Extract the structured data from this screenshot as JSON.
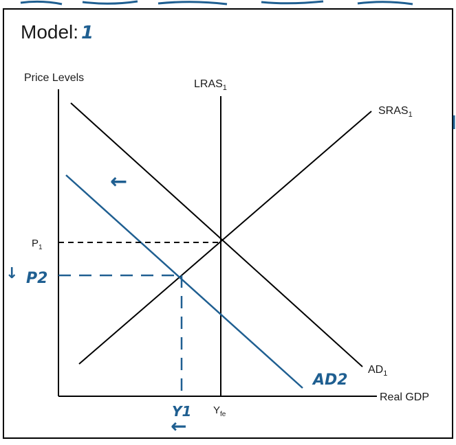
{
  "header": {
    "title": "Model:",
    "model_number": "1"
  },
  "colors": {
    "ink": "#111111",
    "annotation": "#1f5f91",
    "frame": "#000000"
  },
  "graph": {
    "y_axis_label": "Price Levels",
    "x_axis_label": "Real GDP",
    "curves": {
      "lras": "LRAS",
      "lras_sub": "1",
      "sras": "SRAS",
      "sras_sub": "1",
      "ad1": "AD",
      "ad1_sub": "1",
      "ad2": "AD2"
    },
    "ticks": {
      "p1": "P",
      "p1_sub": "1",
      "yfe": "Y",
      "yfe_sub": "fe"
    },
    "annotations": {
      "p2": "P2",
      "p2_arrow": "↓",
      "y1": "Y1",
      "y1_arrow": "←",
      "ad_shift_arrow": "←"
    }
  }
}
